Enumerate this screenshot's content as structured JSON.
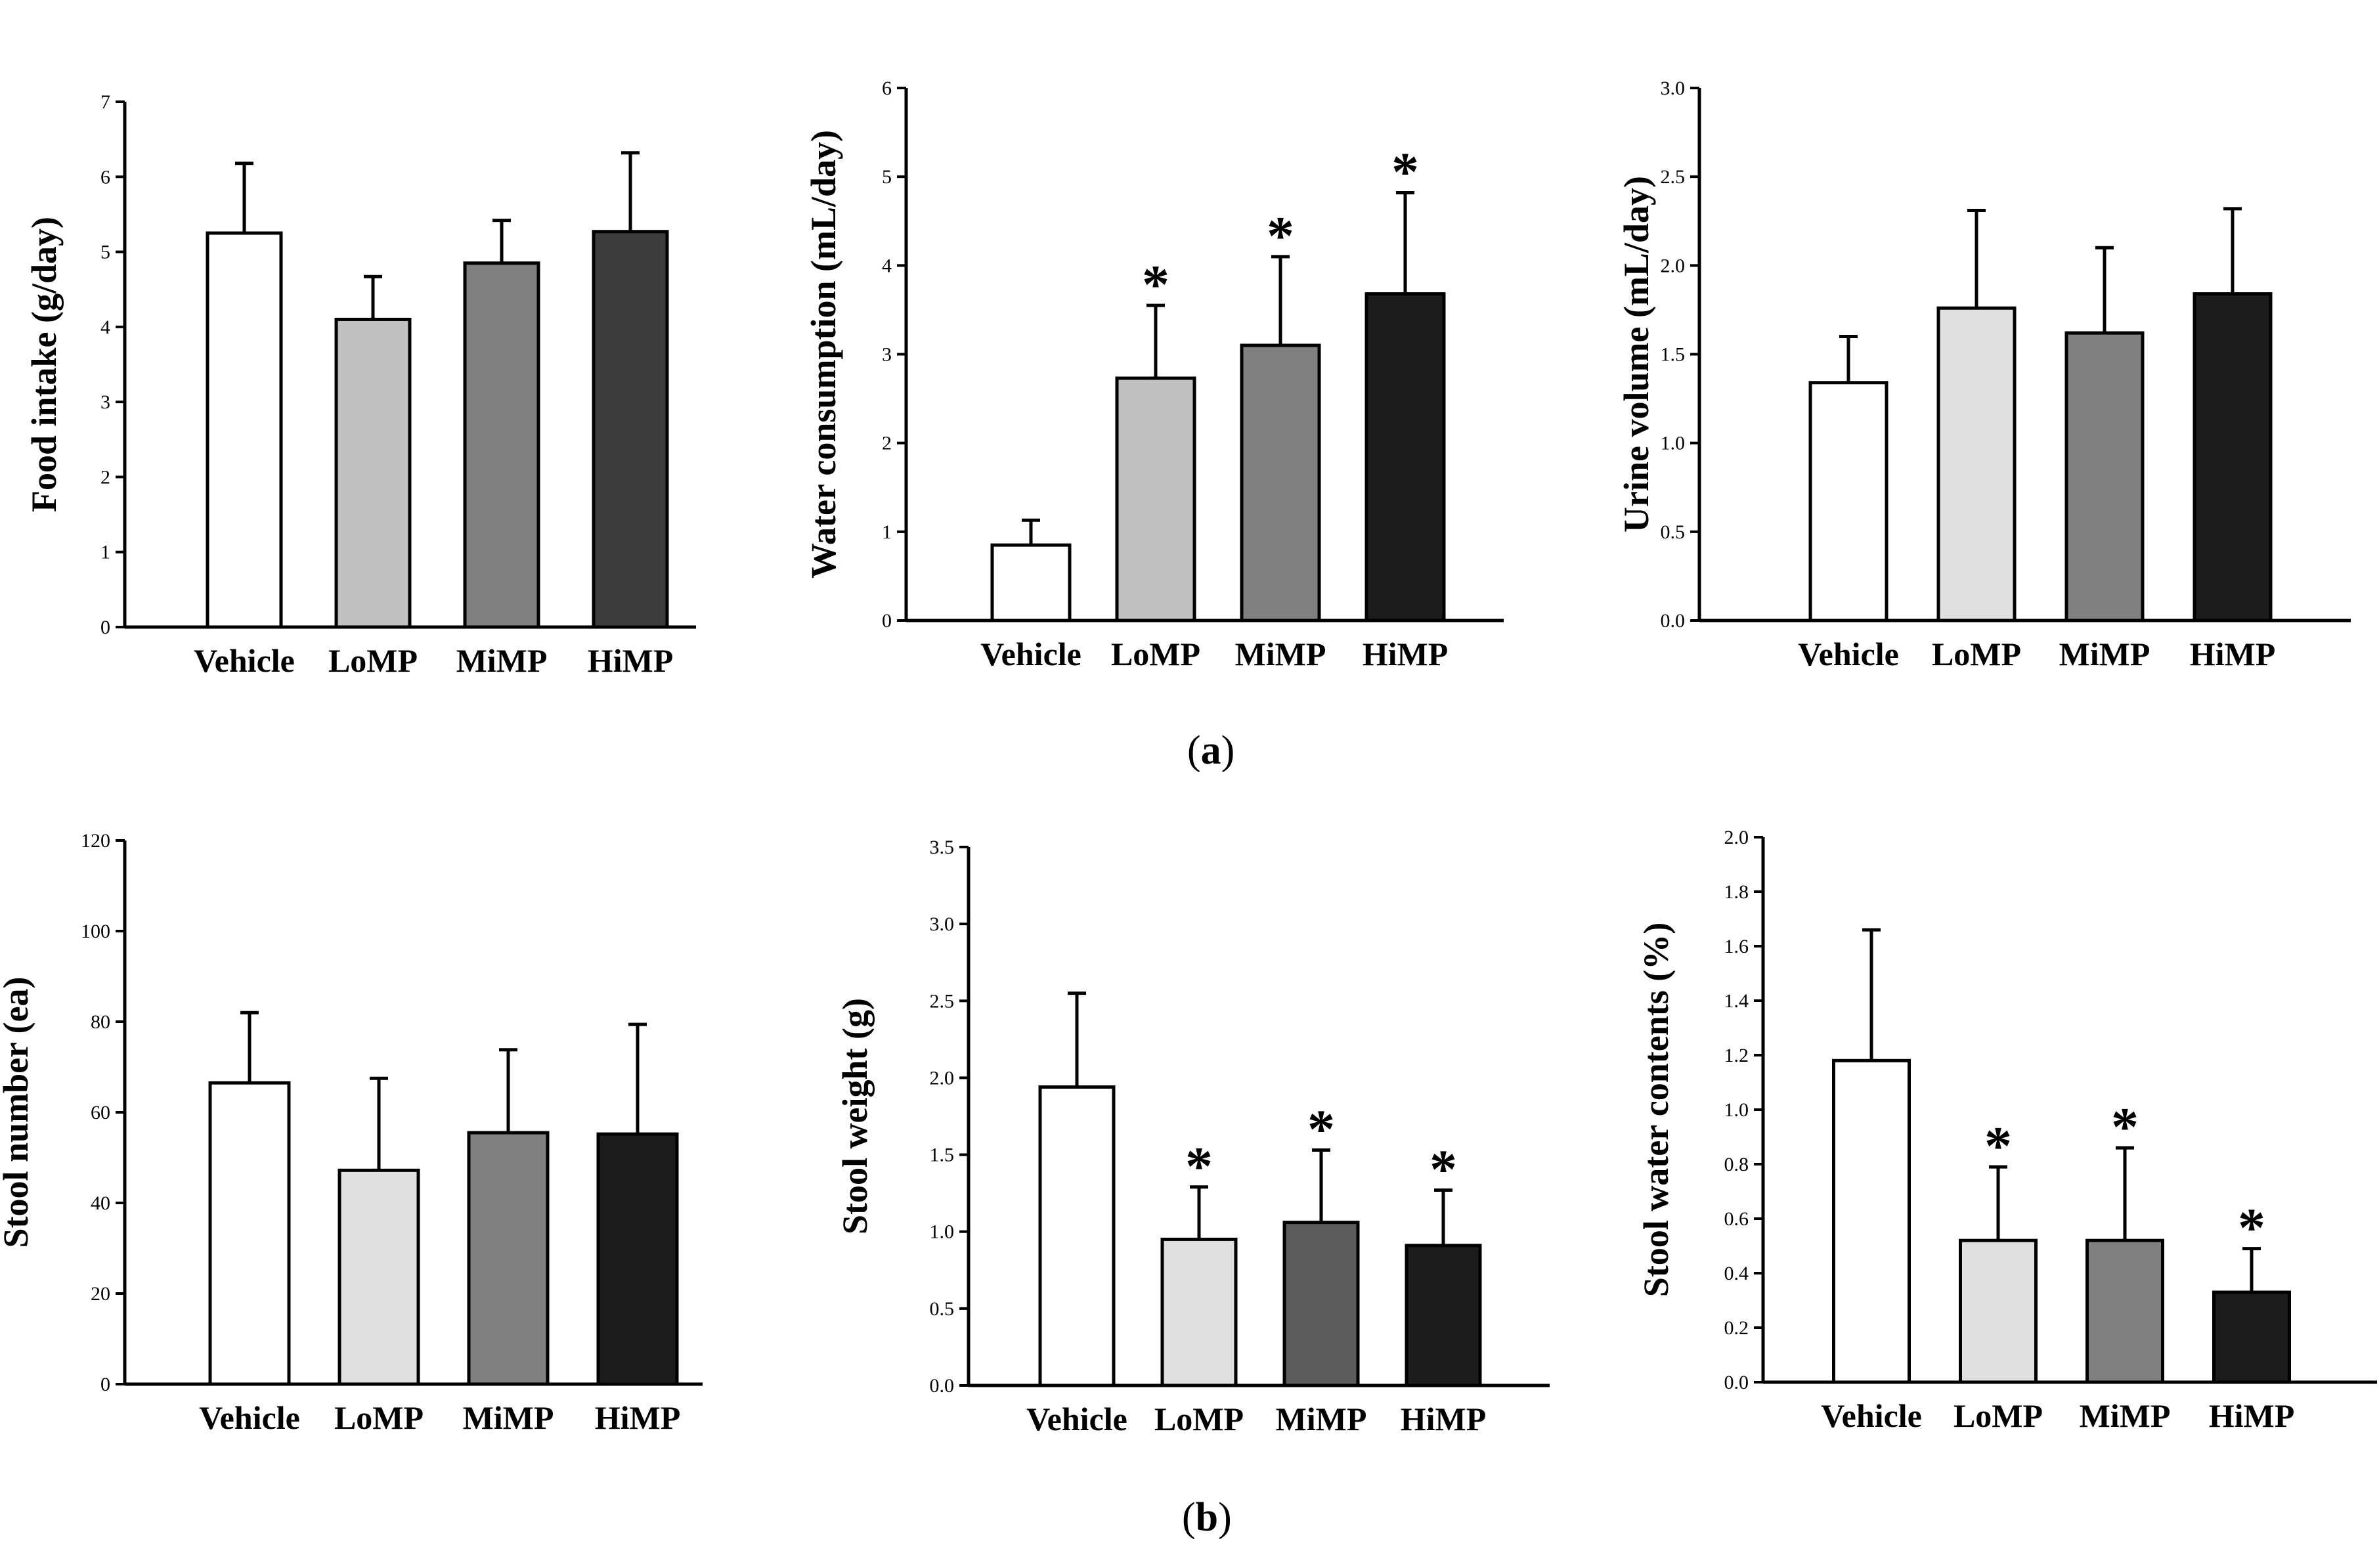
{
  "panels": {
    "a": {
      "letter": "a",
      "open": "(",
      "close": ")"
    },
    "b": {
      "letter": "b",
      "open": "(",
      "close": ")"
    }
  },
  "chart_data": [
    {
      "type": "bar",
      "panel": "a",
      "categories": [
        "Vehicle",
        "LoMP",
        "MiMP",
        "HiMP"
      ],
      "values": [
        5.25,
        4.1,
        4.85,
        5.27
      ],
      "errors": [
        0.93,
        0.57,
        0.57,
        1.05
      ],
      "significant": [
        false,
        false,
        false,
        false
      ],
      "ylabel": "Food intake (g/day)",
      "ylim": [
        0,
        7
      ],
      "yticks": [
        "0",
        "1",
        "2",
        "3",
        "4",
        "5",
        "6",
        "7"
      ],
      "colors": [
        "#ffffff",
        "#c0c0c0",
        "#808080",
        "#3c3c3c"
      ]
    },
    {
      "type": "bar",
      "panel": "a",
      "categories": [
        "Vehicle",
        "LoMP",
        "MiMP",
        "HiMP"
      ],
      "values": [
        0.85,
        2.73,
        3.1,
        3.68
      ],
      "errors": [
        0.28,
        0.82,
        1.0,
        1.14
      ],
      "significant": [
        false,
        true,
        true,
        true
      ],
      "ylabel": "Water consumption (mL/day)",
      "ylim": [
        0,
        6
      ],
      "yticks": [
        "0",
        "1",
        "2",
        "3",
        "4",
        "5",
        "6"
      ],
      "colors": [
        "#ffffff",
        "#c0c0c0",
        "#808080",
        "#1c1c1c"
      ]
    },
    {
      "type": "bar",
      "panel": "a",
      "categories": [
        "Vehicle",
        "LoMP",
        "MiMP",
        "HiMP"
      ],
      "values": [
        1.34,
        1.76,
        1.62,
        1.84
      ],
      "errors": [
        0.26,
        0.55,
        0.48,
        0.48
      ],
      "significant": [
        false,
        false,
        false,
        false
      ],
      "ylabel": "Urine volume (mL/day)",
      "ylim": [
        0,
        3
      ],
      "yticks": [
        "0.0",
        "0.5",
        "1.0",
        "1.5",
        "2.0",
        "2.5",
        "3.0"
      ],
      "colors": [
        "#ffffff",
        "#e0e0e0",
        "#808080",
        "#1c1c1c"
      ]
    },
    {
      "type": "bar",
      "panel": "b",
      "categories": [
        "Vehicle",
        "LoMP",
        "MiMP",
        "HiMP"
      ],
      "values": [
        66.5,
        47.2,
        55.5,
        55.2
      ],
      "errors": [
        15.5,
        20.3,
        18.3,
        24.2
      ],
      "significant": [
        false,
        false,
        false,
        false
      ],
      "ylabel": "Stool number (ea)",
      "ylim": [
        0,
        120
      ],
      "yticks": [
        "0",
        "20",
        "40",
        "60",
        "80",
        "100",
        "120"
      ],
      "colors": [
        "#ffffff",
        "#e0e0e0",
        "#808080",
        "#1c1c1c"
      ]
    },
    {
      "type": "bar",
      "panel": "b",
      "categories": [
        "Vehicle",
        "LoMP",
        "MiMP",
        "HiMP"
      ],
      "values": [
        1.94,
        0.95,
        1.06,
        0.91
      ],
      "errors": [
        0.61,
        0.34,
        0.47,
        0.36
      ],
      "significant": [
        false,
        true,
        true,
        true
      ],
      "ylabel": "Stool weight (g)",
      "ylim": [
        0,
        3.5
      ],
      "yticks": [
        "0.0",
        "0.5",
        "1.0",
        "1.5",
        "2.0",
        "2.5",
        "3.0",
        "3.5"
      ],
      "colors": [
        "#ffffff",
        "#e0e0e0",
        "#5c5c5c",
        "#1c1c1c"
      ]
    },
    {
      "type": "bar",
      "panel": "b",
      "categories": [
        "Vehicle",
        "LoMP",
        "MiMP",
        "HiMP"
      ],
      "values": [
        1.18,
        0.52,
        0.52,
        0.33
      ],
      "errors": [
        0.48,
        0.27,
        0.34,
        0.16
      ],
      "significant": [
        false,
        true,
        true,
        true
      ],
      "ylabel": "Stool water contents (%)",
      "ylim": [
        0,
        2.0
      ],
      "yticks": [
        "0.0",
        "0.2",
        "0.4",
        "0.6",
        "0.8",
        "1.0",
        "1.2",
        "1.4",
        "1.6",
        "1.8",
        "2.0"
      ],
      "colors": [
        "#ffffff",
        "#e0e0e0",
        "#808080",
        "#1c1c1c"
      ]
    }
  ],
  "significance_marker": "*"
}
